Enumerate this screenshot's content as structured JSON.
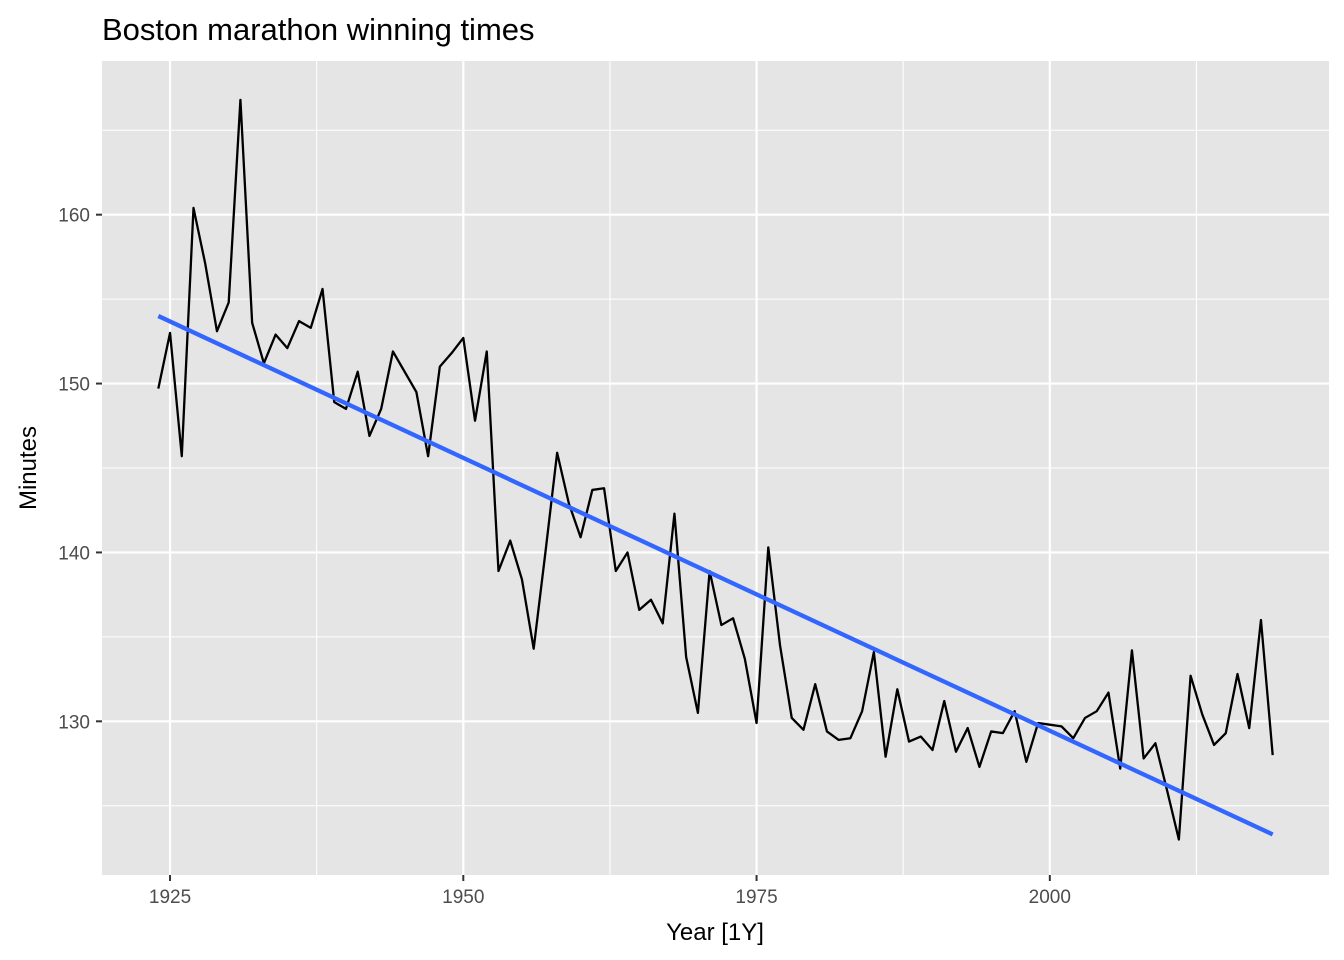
{
  "chart_data": {
    "type": "line",
    "title": "Boston marathon winning times",
    "xlabel": "Year [1Y]",
    "ylabel": "Minutes",
    "xlim": [
      1919.2,
      2023.8
    ],
    "ylim": [
      120.9,
      169.1
    ],
    "xticks": [
      1925,
      1950,
      1975,
      2000
    ],
    "yticks": [
      130,
      140,
      150,
      160
    ],
    "grid": true,
    "legend": "none",
    "colors": {
      "panel": "#e5e5e5",
      "grid": "#ffffff",
      "line": "#000000",
      "trend": "#3366ff"
    },
    "series": [
      {
        "x": [
          1924,
          1925,
          1926,
          1927,
          1928,
          1929,
          1930,
          1931,
          1932,
          1933,
          1934,
          1935,
          1936,
          1937,
          1938,
          1939,
          1940,
          1941,
          1942,
          1943,
          1944,
          1945,
          1946,
          1947,
          1948,
          1949,
          1950,
          1951,
          1952,
          1953,
          1954,
          1955,
          1956,
          1957,
          1958,
          1959,
          1960,
          1961,
          1962,
          1963,
          1964,
          1965,
          1966,
          1967,
          1968,
          1969,
          1970,
          1971,
          1972,
          1973,
          1974,
          1975,
          1976,
          1977,
          1978,
          1979,
          1980,
          1981,
          1982,
          1983,
          1984,
          1985,
          1986,
          1987,
          1988,
          1989,
          1990,
          1991,
          1992,
          1993,
          1994,
          1995,
          1996,
          1997,
          1998,
          1999,
          2000,
          2001,
          2002,
          2003,
          2004,
          2005,
          2006,
          2007,
          2008,
          2009,
          2010,
          2011,
          2012,
          2013,
          2014,
          2015,
          2016,
          2017,
          2018,
          2019
        ],
        "values": [
          149.7,
          153.0,
          145.7,
          160.4,
          157.1,
          153.1,
          154.8,
          166.8,
          153.6,
          151.2,
          152.9,
          152.1,
          153.7,
          153.3,
          155.6,
          148.9,
          148.5,
          150.7,
          146.9,
          148.5,
          151.9,
          150.7,
          149.5,
          145.7,
          151.0,
          151.8,
          152.7,
          147.8,
          151.9,
          138.9,
          140.7,
          138.4,
          134.3,
          140.0,
          145.9,
          142.9,
          140.9,
          143.7,
          143.8,
          138.9,
          140.0,
          136.6,
          137.2,
          135.8,
          142.3,
          133.8,
          130.5,
          138.9,
          135.7,
          136.1,
          133.7,
          129.9,
          140.3,
          134.5,
          130.2,
          129.5,
          132.2,
          129.4,
          128.9,
          129.0,
          130.6,
          134.1,
          127.9,
          131.9,
          128.8,
          129.1,
          128.3,
          131.2,
          128.2,
          129.6,
          127.3,
          129.4,
          129.3,
          130.6,
          127.6,
          129.9,
          129.8,
          129.7,
          129.0,
          130.2,
          130.6,
          131.7,
          127.2,
          134.2,
          127.8,
          128.7,
          125.9,
          123.0,
          132.7,
          130.4,
          128.6,
          129.3,
          132.8,
          129.6,
          136.0,
          128.0
        ]
      },
      {
        "x": [
          1924,
          2019
        ],
        "values": [
          154.0,
          123.3
        ]
      }
    ]
  }
}
